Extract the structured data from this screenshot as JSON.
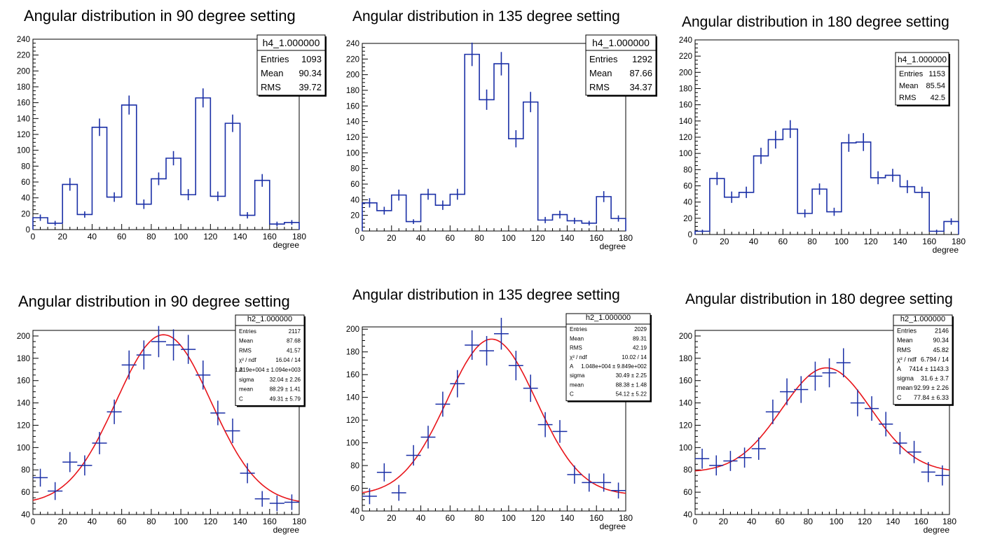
{
  "chart_data": [
    {
      "type": "histogram",
      "title": "Angular distribution in 90 degree setting",
      "xlabel": "degree",
      "xlim": [
        0,
        180
      ],
      "ylim": [
        0,
        240
      ],
      "xticks": [
        "0",
        "20",
        "40",
        "60",
        "80",
        "100",
        "120",
        "140",
        "160",
        "180"
      ],
      "yticks": [
        "0",
        "20",
        "40",
        "60",
        "80",
        "100",
        "120",
        "140",
        "160",
        "180",
        "200",
        "220",
        "240"
      ],
      "stats": {
        "name": "h4_1.000000",
        "rows": [
          {
            "label": "Entries",
            "value": "1093"
          },
          {
            "label": "Mean",
            "value": "90.34"
          },
          {
            "label": "RMS",
            "value": "39.72"
          }
        ]
      },
      "bin_width": 10,
      "x": [
        5,
        15,
        25,
        35,
        45,
        55,
        65,
        75,
        85,
        95,
        105,
        115,
        125,
        135,
        145,
        155,
        165,
        175
      ],
      "values": [
        15,
        8,
        57,
        19,
        129,
        41,
        157,
        32,
        64,
        90,
        44,
        166,
        42,
        134,
        18,
        62,
        7,
        9
      ],
      "errors": [
        4,
        3,
        8,
        4,
        11,
        6,
        12,
        6,
        8,
        9,
        7,
        12,
        6,
        11,
        4,
        8,
        3,
        3
      ]
    },
    {
      "type": "histogram",
      "title": "Angular distribution in 135 degree setting",
      "xlabel": "degree",
      "xlim": [
        0,
        180
      ],
      "ylim": [
        0,
        240
      ],
      "xticks": [
        "0",
        "20",
        "40",
        "60",
        "80",
        "100",
        "120",
        "140",
        "160",
        "180"
      ],
      "yticks": [
        "0",
        "20",
        "40",
        "60",
        "80",
        "100",
        "120",
        "140",
        "160",
        "180",
        "200",
        "220",
        "240"
      ],
      "stats": {
        "name": "h4_1.000000",
        "rows": [
          {
            "label": "Entries",
            "value": "1292"
          },
          {
            "label": "Mean",
            "value": "87.66"
          },
          {
            "label": "RMS",
            "value": "34.37"
          }
        ]
      },
      "bin_width": 10,
      "x": [
        5,
        15,
        25,
        35,
        45,
        55,
        65,
        75,
        85,
        95,
        105,
        115,
        125,
        135,
        145,
        155,
        165,
        175
      ],
      "values": [
        36,
        26,
        46,
        12,
        47,
        33,
        47,
        226,
        168,
        214,
        118,
        165,
        14,
        21,
        13,
        10,
        44,
        16
      ],
      "errors": [
        6,
        5,
        7,
        3,
        7,
        6,
        7,
        15,
        13,
        15,
        11,
        13,
        4,
        5,
        4,
        3,
        7,
        4
      ]
    },
    {
      "type": "histogram",
      "title": "Angular distribution in 180 degree setting",
      "xlabel": "degree",
      "xlim": [
        0,
        180
      ],
      "ylim": [
        0,
        240
      ],
      "xticks": [
        "0",
        "20",
        "40",
        "60",
        "80",
        "100",
        "120",
        "140",
        "160",
        "180"
      ],
      "yticks": [
        "0",
        "20",
        "40",
        "60",
        "80",
        "100",
        "120",
        "140",
        "160",
        "180",
        "200",
        "220",
        "240"
      ],
      "stats": {
        "name": "h4_1.000000",
        "rows": [
          {
            "label": "Entries",
            "value": "1153"
          },
          {
            "label": "Mean",
            "value": "85.54"
          },
          {
            "label": "RMS",
            "value": "42.5"
          }
        ]
      },
      "bin_width": 10,
      "x": [
        5,
        15,
        25,
        35,
        45,
        55,
        65,
        75,
        85,
        95,
        105,
        115,
        125,
        135,
        145,
        155,
        165,
        175
      ],
      "values": [
        4,
        69,
        46,
        52,
        97,
        117,
        130,
        26,
        56,
        28,
        113,
        114,
        70,
        73,
        59,
        52,
        4,
        16
      ],
      "errors": [
        2,
        8,
        7,
        7,
        10,
        11,
        11,
        5,
        7,
        5,
        11,
        11,
        8,
        8,
        8,
        7,
        2,
        4
      ]
    },
    {
      "type": "scatter",
      "title": "Angular distribution in 90 degree setting",
      "xlabel": "degree",
      "xlim": [
        0,
        180
      ],
      "ylim": [
        40,
        205
      ],
      "xticks": [
        "0",
        "20",
        "40",
        "60",
        "80",
        "100",
        "120",
        "140",
        "160",
        "180"
      ],
      "yticks": [
        "40",
        "60",
        "80",
        "100",
        "120",
        "140",
        "160",
        "180",
        "200"
      ],
      "stats": {
        "name": "h2_1.000000",
        "rows": [
          {
            "label": "Entries",
            "value": "2117"
          },
          {
            "label": "Mean",
            "value": "87.68"
          },
          {
            "label": "RMS",
            "value": "41.57"
          },
          {
            "label": "χ² / ndf",
            "value": "16.04 / 14"
          },
          {
            "label": "A",
            "value": "1.219e+004 ± 1.094e+003"
          },
          {
            "label": "sigma",
            "value": "32.04 ± 2.26"
          },
          {
            "label": "mean",
            "value": "88.29 ± 1.41"
          },
          {
            "label": "C",
            "value": "49.31 ± 5.79"
          }
        ]
      },
      "x": [
        5,
        15,
        25,
        35,
        45,
        55,
        65,
        75,
        85,
        95,
        105,
        115,
        125,
        135,
        145,
        155,
        165,
        175
      ],
      "values": [
        73,
        61,
        87,
        84,
        104,
        132,
        174,
        183,
        195,
        192,
        188,
        165,
        131,
        115,
        77,
        54,
        50,
        51
      ],
      "errors": [
        8,
        8,
        9,
        9,
        10,
        11,
        13,
        13,
        14,
        14,
        13,
        13,
        11,
        11,
        9,
        7,
        7,
        7
      ],
      "fit": {
        "A": 12190,
        "sigma": 32.04,
        "mean": 88.29,
        "C": 49.31
      }
    },
    {
      "type": "scatter",
      "title": "Angular distribution in 135 degree setting",
      "xlabel": "degree",
      "xlim": [
        0,
        180
      ],
      "ylim": [
        40,
        202
      ],
      "xticks": [
        "0",
        "20",
        "40",
        "60",
        "80",
        "100",
        "120",
        "140",
        "160",
        "180"
      ],
      "yticks": [
        "40",
        "60",
        "80",
        "100",
        "120",
        "140",
        "160",
        "180",
        "200"
      ],
      "stats": {
        "name": "h2_1.000000",
        "rows": [
          {
            "label": "Entries",
            "value": "2029"
          },
          {
            "label": "Mean",
            "value": "89.31"
          },
          {
            "label": "RMS",
            "value": "42.19"
          },
          {
            "label": "χ² / ndf",
            "value": "10.02 / 14"
          },
          {
            "label": "A",
            "value": "1.048e+004 ± 9.849e+002"
          },
          {
            "label": "sigma",
            "value": "30.49 ± 2.25"
          },
          {
            "label": "mean",
            "value": "88.38 ± 1.48"
          },
          {
            "label": "C",
            "value": "54.12 ± 5.22"
          }
        ]
      },
      "x": [
        5,
        15,
        25,
        35,
        45,
        55,
        65,
        75,
        85,
        95,
        105,
        115,
        125,
        135,
        145,
        155,
        165,
        175
      ],
      "values": [
        53,
        74,
        56,
        89,
        105,
        134,
        152,
        186,
        181,
        196,
        168,
        148,
        116,
        110,
        72,
        65,
        65,
        58
      ],
      "errors": [
        7,
        8,
        7,
        9,
        10,
        11,
        12,
        13,
        13,
        14,
        13,
        12,
        11,
        10,
        8,
        8,
        8,
        7
      ],
      "fit": {
        "A": 10480,
        "sigma": 30.49,
        "mean": 88.38,
        "C": 54.12
      }
    },
    {
      "type": "scatter",
      "title": "Angular distribution in 180 degree setting",
      "xlabel": "degree",
      "xlim": [
        0,
        180
      ],
      "ylim": [
        40,
        205
      ],
      "xticks": [
        "0",
        "20",
        "40",
        "60",
        "80",
        "100",
        "120",
        "140",
        "160",
        "180"
      ],
      "yticks": [
        "40",
        "60",
        "80",
        "100",
        "120",
        "140",
        "160",
        "180",
        "200"
      ],
      "stats": {
        "name": "h2_1.000000",
        "rows": [
          {
            "label": "Entries",
            "value": "2146"
          },
          {
            "label": "Mean",
            "value": "90.34"
          },
          {
            "label": "RMS",
            "value": "45.82"
          },
          {
            "label": "χ² / ndf",
            "value": "6.794 / 14"
          },
          {
            "label": "A",
            "value": "7414 ± 1143.3"
          },
          {
            "label": "sigma",
            "value": "31.6 ± 3.7"
          },
          {
            "label": "mean",
            "value": "92.99 ± 2.26"
          },
          {
            "label": "C",
            "value": "77.84 ± 6.33"
          }
        ]
      },
      "x": [
        5,
        15,
        25,
        35,
        45,
        55,
        65,
        75,
        85,
        95,
        105,
        115,
        125,
        135,
        145,
        155,
        165,
        175
      ],
      "values": [
        90,
        84,
        88,
        91,
        99,
        132,
        150,
        152,
        164,
        167,
        176,
        140,
        135,
        121,
        104,
        96,
        78,
        75
      ],
      "errors": [
        9,
        9,
        9,
        9,
        10,
        11,
        12,
        12,
        13,
        13,
        13,
        12,
        11,
        11,
        10,
        10,
        9,
        9
      ],
      "fit": {
        "A": 7414,
        "sigma": 31.6,
        "mean": 92.99,
        "C": 77.84
      }
    }
  ]
}
